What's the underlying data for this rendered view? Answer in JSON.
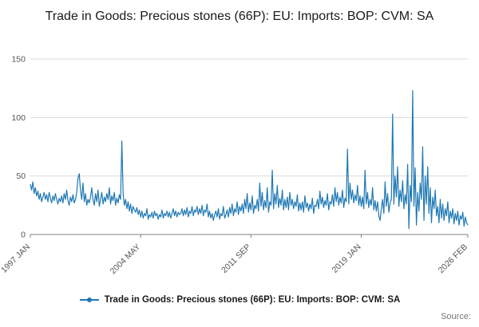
{
  "page": {
    "title": "Trade in Goods: Precious stones (66P): EU: Imports: BOP: CVM: SA",
    "source_label": "Source:"
  },
  "legend": {
    "label": "Trade in Goods: Precious stones (66P): EU: Imports: BOP: CVM: SA"
  },
  "colors": {
    "line": "#1f78b4",
    "grid": "#d9d9d9",
    "axis": "#808080",
    "tick_text": "#555555"
  },
  "chart_data": {
    "type": "line",
    "title": "Trade in Goods: Precious stones (66P): EU: Imports: BOP: CVM: SA",
    "xlabel": "",
    "ylabel": "",
    "ylim": [
      0,
      150
    ],
    "y_ticks": [
      0,
      50,
      100,
      150
    ],
    "grid": "horizontal",
    "legend_position": "bottom",
    "frequency": "monthly",
    "x_start": "1997 JAN",
    "x_end": "2026 FEB",
    "x_ticks": [
      {
        "label": "1997 JAN",
        "index": 0
      },
      {
        "label": "2004 MAY",
        "index": 88
      },
      {
        "label": "2011 SEP",
        "index": 176
      },
      {
        "label": "2019 JAN",
        "index": 264
      },
      {
        "label": "2026 FEB",
        "index": 349
      }
    ],
    "values": [
      43,
      38,
      45,
      35,
      40,
      33,
      37,
      30,
      35,
      28,
      32,
      36,
      30,
      34,
      28,
      36,
      31,
      27,
      33,
      29,
      35,
      30,
      26,
      31,
      28,
      33,
      27,
      35,
      30,
      38,
      29,
      25,
      32,
      28,
      34,
      27,
      30,
      36,
      48,
      52,
      38,
      30,
      44,
      28,
      35,
      25,
      30,
      27,
      32,
      40,
      30,
      25,
      35,
      28,
      38,
      24,
      30,
      36,
      26,
      32,
      28,
      35,
      30,
      40,
      26,
      33,
      29,
      36,
      25,
      31,
      27,
      34,
      30,
      80,
      35,
      25,
      30,
      22,
      28,
      20,
      26,
      18,
      24,
      21,
      19,
      23,
      17,
      21,
      15,
      20,
      14,
      18,
      16,
      22,
      13,
      17,
      15,
      19,
      14,
      20,
      16,
      18,
      13,
      17,
      15,
      21,
      14,
      18,
      16,
      20,
      15,
      19,
      14,
      18,
      22,
      16,
      20,
      15,
      19,
      17,
      18,
      22,
      16,
      21,
      17,
      23,
      15,
      20,
      18,
      24,
      16,
      21,
      19,
      24,
      17,
      22,
      18,
      25,
      16,
      21,
      19,
      26,
      15,
      20,
      14,
      18,
      12,
      17,
      20,
      15,
      22,
      13,
      18,
      16,
      24,
      14,
      17,
      21,
      15,
      23,
      18,
      26,
      16,
      22,
      19,
      28,
      17,
      24,
      20,
      26,
      18,
      30,
      22,
      35,
      19,
      27,
      21,
      33,
      18,
      25,
      22,
      30,
      20,
      44,
      24,
      36,
      21,
      29,
      23,
      40,
      19,
      28,
      25,
      55,
      22,
      35,
      26,
      42,
      23,
      31,
      25,
      38,
      21,
      30,
      23,
      32,
      21,
      36,
      25,
      30,
      22,
      28,
      24,
      34,
      20,
      27,
      21,
      28,
      19,
      33,
      23,
      27,
      20,
      26,
      22,
      31,
      18,
      25,
      24,
      30,
      22,
      37,
      26,
      32,
      23,
      29,
      25,
      35,
      21,
      28,
      26,
      34,
      24,
      40,
      28,
      36,
      25,
      32,
      27,
      38,
      23,
      31,
      28,
      73,
      26,
      44,
      30,
      38,
      27,
      34,
      29,
      42,
      25,
      33,
      24,
      32,
      22,
      55,
      26,
      36,
      23,
      30,
      25,
      40,
      21,
      29,
      20,
      28,
      16,
      12,
      22,
      30,
      18,
      45,
      24,
      35,
      19,
      27,
      30,
      103,
      26,
      50,
      32,
      58,
      24,
      38,
      28,
      46,
      22,
      34,
      26,
      60,
      5,
      42,
      28,
      123,
      24,
      57,
      8,
      36,
      20,
      44,
      30,
      75,
      12,
      50,
      26,
      58,
      18,
      40,
      10,
      32,
      22,
      38,
      16,
      24,
      10,
      30,
      14,
      26,
      12,
      22,
      16,
      28,
      10,
      20,
      14,
      22,
      9,
      18,
      12,
      20,
      8,
      16,
      13,
      19,
      7,
      15,
      10,
      8
    ]
  }
}
